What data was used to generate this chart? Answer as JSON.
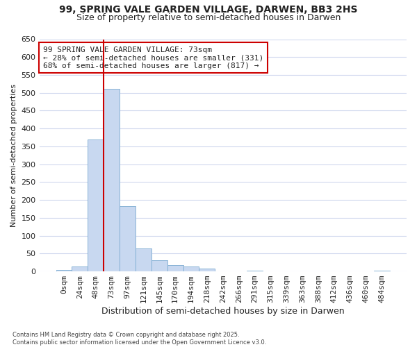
{
  "title_line1": "99, SPRING VALE GARDEN VILLAGE, DARWEN, BB3 2HS",
  "title_line2": "Size of property relative to semi-detached houses in Darwen",
  "xlabel": "Distribution of semi-detached houses by size in Darwen",
  "ylabel": "Number of semi-detached properties",
  "bar_labels": [
    "0sqm",
    "24sqm",
    "48sqm",
    "73sqm",
    "97sqm",
    "121sqm",
    "145sqm",
    "170sqm",
    "194sqm",
    "218sqm",
    "242sqm",
    "266sqm",
    "291sqm",
    "315sqm",
    "339sqm",
    "363sqm",
    "388sqm",
    "412sqm",
    "436sqm",
    "460sqm",
    "484sqm"
  ],
  "bar_values": [
    5,
    14,
    370,
    511,
    183,
    65,
    32,
    18,
    13,
    7,
    0,
    0,
    3,
    0,
    0,
    0,
    0,
    0,
    0,
    0,
    3
  ],
  "bar_color": "#c8d8f0",
  "bar_edge_color": "#7aaad0",
  "property_bin_index": 3,
  "vline_color": "#cc0000",
  "annotation_text": "99 SPRING VALE GARDEN VILLAGE: 73sqm\n← 28% of semi-detached houses are smaller (331)\n68% of semi-detached houses are larger (817) →",
  "annotation_box_facecolor": "#ffffff",
  "annotation_box_edgecolor": "#cc0000",
  "ylim": [
    0,
    650
  ],
  "yticks": [
    0,
    50,
    100,
    150,
    200,
    250,
    300,
    350,
    400,
    450,
    500,
    550,
    600,
    650
  ],
  "footnote": "Contains HM Land Registry data © Crown copyright and database right 2025.\nContains public sector information licensed under the Open Government Licence v3.0.",
  "background_color": "#ffffff",
  "plot_background_color": "#ffffff",
  "grid_color": "#d0d8ee",
  "font_color": "#222222",
  "title_fontsize": 10,
  "subtitle_fontsize": 9,
  "ylabel_fontsize": 8,
  "xlabel_fontsize": 9,
  "tick_fontsize": 8,
  "annotation_fontsize": 8
}
